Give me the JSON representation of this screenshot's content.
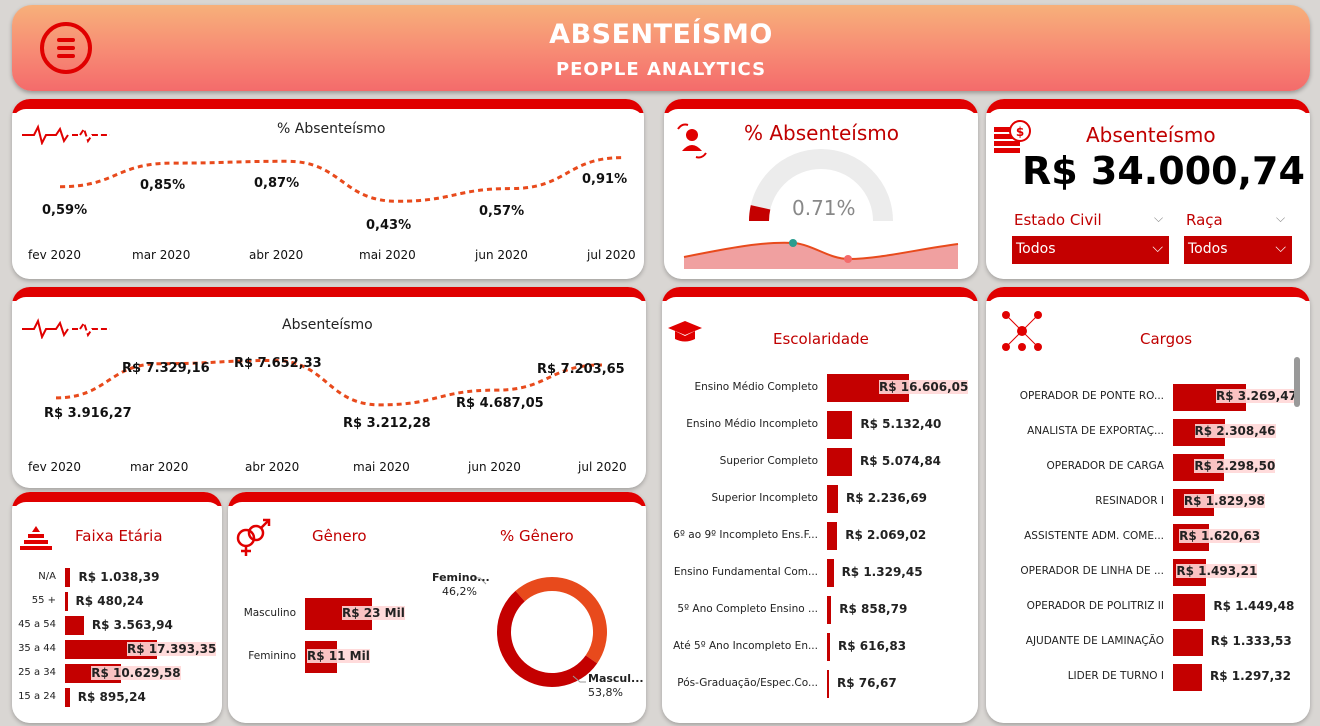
{
  "header": {
    "title": "ABSENTEÍSMO",
    "subtitle": "PEOPLE ANALYTICS",
    "menu_icon": "hamburger-menu-icon"
  },
  "months": [
    "fev 2020",
    "mar 2020",
    "abr 2020",
    "mai 2020",
    "jun 2020",
    "jul 2020"
  ],
  "pct_chart": {
    "title": "% Absenteísmo",
    "labels": [
      "0,59%",
      "0,85%",
      "0,87%",
      "0,43%",
      "0,57%",
      "0,91%"
    ]
  },
  "value_chart": {
    "title": "Absenteísmo",
    "labels": [
      "R$ 3.916,27",
      "R$ 7.329,16",
      "R$ 7.652,33",
      "R$ 3.212,28",
      "R$ 4.687,05",
      "R$ 7.203,65"
    ]
  },
  "gauge": {
    "title": "% Absenteísmo",
    "value": "0.71%",
    "fraction": 0.071
  },
  "kpi": {
    "title": "Absenteísmo",
    "value": "R$ 34.000,74",
    "filter1_label": "Estado Civil",
    "filter1_value": "Todos",
    "filter2_label": "Raça",
    "filter2_value": "Todos"
  },
  "escolaridade": {
    "title": "Escolaridade",
    "items": [
      {
        "label": "Ensino Médio Completo",
        "value": "R$ 16.606,05",
        "num": 16606.05
      },
      {
        "label": "Ensino Médio Incompleto",
        "value": "R$ 5.132,40",
        "num": 5132.4
      },
      {
        "label": "Superior Completo",
        "value": "R$ 5.074,84",
        "num": 5074.84
      },
      {
        "label": "Superior Incompleto",
        "value": "R$ 2.236,69",
        "num": 2236.69
      },
      {
        "label": "6º ao 9º Incompleto Ens.F...",
        "value": "R$ 2.069,02",
        "num": 2069.02
      },
      {
        "label": "Ensino Fundamental Com...",
        "value": "R$ 1.329,45",
        "num": 1329.45
      },
      {
        "label": "5º Ano Completo Ensino ...",
        "value": "R$ 858,79",
        "num": 858.79
      },
      {
        "label": "Até 5º Ano Incompleto En...",
        "value": "R$ 616,83",
        "num": 616.83
      },
      {
        "label": "Pós-Graduação/Espec.Co...",
        "value": "R$ 76,67",
        "num": 76.67
      }
    ]
  },
  "cargos": {
    "title": "Cargos",
    "items": [
      {
        "label": "OPERADOR DE PONTE RO...",
        "value": "R$ 3.269,47",
        "num": 3269.47
      },
      {
        "label": "ANALISTA DE EXPORTAÇ...",
        "value": "R$ 2.308,46",
        "num": 2308.46
      },
      {
        "label": "OPERADOR DE CARGA",
        "value": "R$ 2.298,50",
        "num": 2298.5
      },
      {
        "label": "RESINADOR I",
        "value": "R$ 1.829,98",
        "num": 1829.98
      },
      {
        "label": "ASSISTENTE ADM. COME...",
        "value": "R$ 1.620,63",
        "num": 1620.63
      },
      {
        "label": "OPERADOR DE LINHA DE ...",
        "value": "R$ 1.493,21",
        "num": 1493.21
      },
      {
        "label": "OPERADOR DE POLITRIZ II",
        "value": "R$ 1.449,48",
        "num": 1449.48
      },
      {
        "label": "AJUDANTE DE LAMINAÇÃO",
        "value": "R$ 1.333,53",
        "num": 1333.53
      },
      {
        "label": "LIDER DE TURNO I",
        "value": "R$ 1.297,32",
        "num": 1297.32
      }
    ]
  },
  "faixa": {
    "title": "Faixa Etária",
    "items": [
      {
        "label": "N/A",
        "value": "R$ 1.038,39",
        "num": 1038.39
      },
      {
        "label": "55 +",
        "value": "R$ 480,24",
        "num": 480.24
      },
      {
        "label": "45 a 54",
        "value": "R$ 3.563,94",
        "num": 3563.94
      },
      {
        "label": "35 a 44",
        "value": "R$ 17.393,35",
        "num": 17393.35
      },
      {
        "label": "25 a 34",
        "value": "R$ 10.629,58",
        "num": 10629.58
      },
      {
        "label": "15 a 24",
        "value": "R$ 895,24",
        "num": 895.24
      }
    ]
  },
  "genero": {
    "title": "Gênero",
    "items": [
      {
        "label": "Masculino",
        "value": "R$ 23 Mil",
        "num": 23
      },
      {
        "label": "Feminino",
        "value": "R$ 11 Mil",
        "num": 11
      }
    ]
  },
  "pct_genero": {
    "title": "% Gênero",
    "fem_label": "Femino...",
    "fem_value": "46,2%",
    "masc_label": "Mascul...",
    "masc_value": "53,8%",
    "fem_fraction": 0.462,
    "masc_fraction": 0.538
  },
  "colors": {
    "accent": "#c40000",
    "bright": "#e00000",
    "orange": "#e84a1c"
  },
  "chart_data": [
    {
      "type": "line",
      "title": "% Absenteísmo",
      "x": [
        "fev 2020",
        "mar 2020",
        "abr 2020",
        "mai 2020",
        "jun 2020",
        "jul 2020"
      ],
      "y": [
        0.59,
        0.85,
        0.87,
        0.43,
        0.57,
        0.91
      ]
    },
    {
      "type": "line",
      "title": "Absenteísmo",
      "x": [
        "fev 2020",
        "mar 2020",
        "abr 2020",
        "mai 2020",
        "jun 2020",
        "jul 2020"
      ],
      "y": [
        3916.27,
        7329.16,
        7652.33,
        3212.28,
        4687.05,
        7203.65
      ]
    },
    {
      "type": "pie",
      "title": "% Gênero",
      "categories": [
        "Feminino",
        "Masculino"
      ],
      "values": [
        46.2,
        53.8
      ]
    }
  ]
}
